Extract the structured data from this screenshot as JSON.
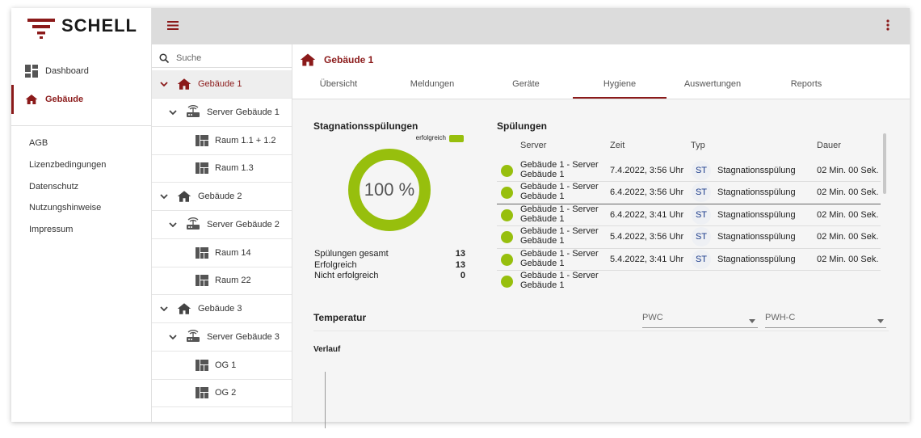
{
  "sidebar": {
    "logo": "SCHELL",
    "nav": [
      "Dashboard",
      "Gebäude"
    ],
    "links": [
      "AGB",
      "Lizenzbedingungen",
      "Datenschutz",
      "Nutzungshinweise",
      "Impressum"
    ]
  },
  "tree": {
    "search_placeholder": "Suche",
    "buildings": [
      {
        "label": "Gebäude 1",
        "servers": [
          {
            "label": "Server Gebäude 1",
            "rooms": [
              "Raum 1.1 + 1.2",
              "Raum 1.3"
            ]
          }
        ]
      },
      {
        "label": "Gebäude 2",
        "servers": [
          {
            "label": "Server Gebäude 2",
            "rooms": [
              "Raum 14",
              "Raum 22"
            ]
          }
        ]
      },
      {
        "label": "Gebäude 3",
        "servers": [
          {
            "label": "Server Gebäude 3",
            "rooms": [
              "OG 1",
              "OG 2"
            ]
          }
        ]
      }
    ]
  },
  "main": {
    "title": "Gebäude 1",
    "tabs": [
      "Übersicht",
      "Meldungen",
      "Geräte",
      "Hygiene",
      "Auswertungen",
      "Reports"
    ]
  },
  "stagnation": {
    "title": "Stagnationsspülungen",
    "legend": "erfolgreich",
    "percent": "100 %",
    "stats": [
      [
        "Spülungen gesamt",
        "13"
      ],
      [
        "Erfolgreich",
        "13"
      ],
      [
        "Nicht erfolgreich",
        "0"
      ]
    ]
  },
  "flushes": {
    "title": "Spülungen",
    "columns": [
      "Server",
      "Zeit",
      "Typ",
      "Dauer"
    ],
    "rows": [
      [
        "Gebäude 1 - Server Gebäude 1",
        "7.4.2022, 3:56 Uhr",
        "ST",
        "Stagnationsspülung",
        "02 Min. 00 Sek."
      ],
      [
        "Gebäude 1 - Server Gebäude 1",
        "6.4.2022, 3:56 Uhr",
        "ST",
        "Stagnationsspülung",
        "02 Min. 00 Sek."
      ],
      [
        "Gebäude 1 - Server Gebäude 1",
        "6.4.2022, 3:41 Uhr",
        "ST",
        "Stagnationsspülung",
        "02 Min. 00 Sek."
      ],
      [
        "Gebäude 1 - Server Gebäude 1",
        "5.4.2022, 3:56 Uhr",
        "ST",
        "Stagnationsspülung",
        "02 Min. 00 Sek."
      ],
      [
        "Gebäude 1 - Server Gebäude 1",
        "5.4.2022, 3:41 Uhr",
        "ST",
        "Stagnationsspülung",
        "02 Min. 00 Sek."
      ],
      [
        "Gebäude 1 - Server Gebäude 1"
      ]
    ]
  },
  "temperature": {
    "title": "Temperatur",
    "selects": [
      "PWC",
      "PWH-C"
    ],
    "subtitle": "Verlauf"
  }
}
